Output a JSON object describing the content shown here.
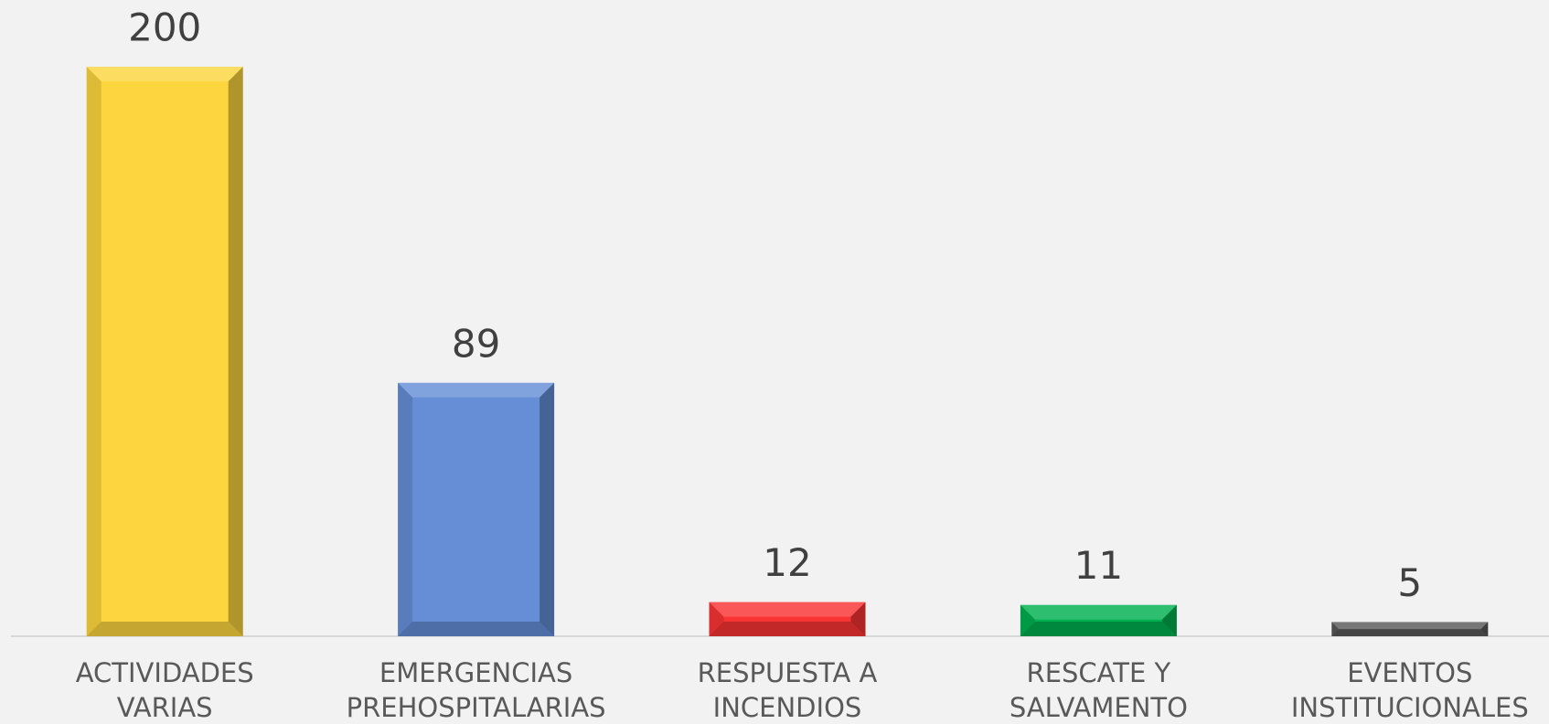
{
  "chart_data": {
    "type": "bar",
    "categories": [
      [
        "ACTIVIDADES",
        "VARIAS"
      ],
      [
        "EMERGENCIAS",
        "PREHOSPITALARIAS"
      ],
      [
        "RESPUESTA A",
        "INCENDIOS"
      ],
      [
        "RESCATE Y",
        "SALVAMENTO"
      ],
      [
        "EVENTOS",
        "INSTITUCIONALES"
      ]
    ],
    "values": [
      200,
      89,
      12,
      11,
      5
    ],
    "colors": [
      "#fcd53f",
      "#658ed6",
      "#f93434",
      "#00b050",
      "#595959"
    ],
    "ylim": [
      0,
      200
    ]
  }
}
